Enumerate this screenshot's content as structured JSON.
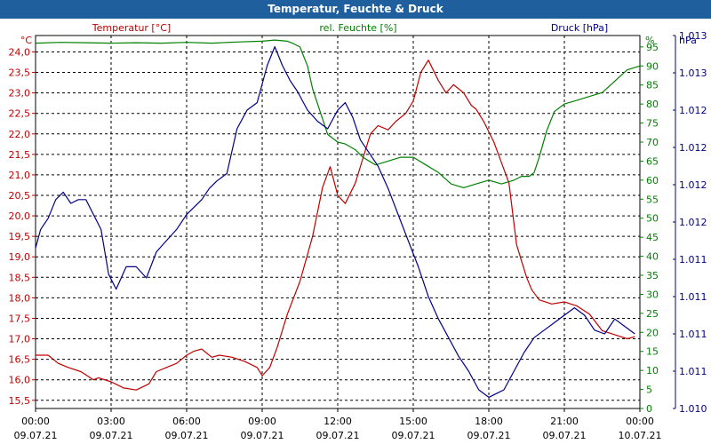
{
  "window": {
    "title": "Temperatur, Feuchte & Druck"
  },
  "colors": {
    "temperature": "#c00000",
    "humidity": "#008000",
    "pressure": "#00008b",
    "grid": "#000000",
    "titlebar": "#1f5f9e"
  },
  "chart_data": {
    "type": "line",
    "title": "Temperatur, Feuchte & Druck",
    "x_ticks": [
      {
        "time": "00:00",
        "date": "09.07.21",
        "hour": 0
      },
      {
        "time": "03:00",
        "date": "09.07.21",
        "hour": 3
      },
      {
        "time": "06:00",
        "date": "09.07.21",
        "hour": 6
      },
      {
        "time": "09:00",
        "date": "09.07.21",
        "hour": 9
      },
      {
        "time": "12:00",
        "date": "09.07.21",
        "hour": 12
      },
      {
        "time": "15:00",
        "date": "09.07.21",
        "hour": 15
      },
      {
        "time": "18:00",
        "date": "09.07.21",
        "hour": 18
      },
      {
        "time": "21:00",
        "date": "09.07.21",
        "hour": 21
      },
      {
        "time": "00:00",
        "date": "10.07.21",
        "hour": 24
      }
    ],
    "xlim": [
      0,
      24
    ],
    "axes": {
      "temperature": {
        "legend": "Temperatur [°C]",
        "unit": "°C",
        "ylim": [
          15.3,
          24.4
        ],
        "tick_labels": [
          "24,0",
          "23,5",
          "23,0",
          "22,5",
          "22,0",
          "21,5",
          "21,0",
          "20,5",
          "20,0",
          "19,5",
          "19,0",
          "18,5",
          "18,0",
          "17,5",
          "17,0",
          "16,5",
          "16,0",
          "15,5"
        ],
        "tick_values": [
          24.0,
          23.5,
          23.0,
          22.5,
          22.0,
          21.5,
          21.0,
          20.5,
          20.0,
          19.5,
          19.0,
          18.5,
          18.0,
          17.5,
          17.0,
          16.5,
          16.0,
          15.5
        ]
      },
      "humidity": {
        "legend": "rel. Feuchte [%]",
        "unit": "%",
        "ylim": [
          0,
          98
        ],
        "tick_labels": [
          "95",
          "90",
          "85",
          "80",
          "75",
          "70",
          "65",
          "60",
          "55",
          "50",
          "45",
          "40",
          "35",
          "30",
          "25",
          "20",
          "15",
          "10",
          "5",
          "0"
        ],
        "tick_values": [
          95,
          90,
          85,
          80,
          75,
          70,
          65,
          60,
          55,
          50,
          45,
          40,
          35,
          30,
          25,
          20,
          15,
          10,
          5,
          0
        ]
      },
      "pressure": {
        "legend": "Druck [hPa]",
        "unit": "hPa",
        "tick_labels": [
          "1.013",
          "1.013",
          "1.012",
          "1.012",
          "1.012",
          "1.012",
          "1.011",
          "1.011",
          "1.011",
          "1.011",
          "1.010"
        ],
        "tick_fractions": [
          0.0,
          0.1,
          0.2,
          0.3,
          0.4,
          0.5,
          0.6,
          0.7,
          0.8,
          0.9,
          1.0
        ]
      }
    },
    "series": [
      {
        "name": "Temperatur [°C]",
        "axis": "temperature",
        "x": [
          0,
          0.5,
          0.9,
          1.3,
          1.8,
          2.3,
          2.5,
          3.0,
          3.5,
          4.0,
          4.5,
          4.8,
          5.2,
          5.6,
          6.0,
          6.3,
          6.6,
          7.0,
          7.3,
          7.8,
          8.3,
          8.8,
          9.0,
          9.3,
          9.6,
          10.0,
          10.5,
          11.0,
          11.4,
          11.7,
          12.0,
          12.3,
          12.7,
          13.0,
          13.3,
          13.6,
          14.0,
          14.3,
          14.7,
          15.0,
          15.3,
          15.6,
          16.0,
          16.3,
          16.6,
          17.0,
          17.3,
          17.5,
          17.8,
          18.2,
          18.5,
          18.8,
          19.1,
          19.3,
          19.5,
          19.7,
          20.0,
          20.5,
          21.0,
          21.5,
          22.0,
          22.5,
          23.0,
          23.5,
          23.8
        ],
        "values": [
          16.6,
          16.6,
          16.4,
          16.3,
          16.2,
          16.0,
          16.05,
          15.95,
          15.8,
          15.75,
          15.9,
          16.2,
          16.3,
          16.4,
          16.6,
          16.7,
          16.75,
          16.55,
          16.6,
          16.55,
          16.45,
          16.3,
          16.1,
          16.3,
          16.8,
          17.6,
          18.4,
          19.5,
          20.7,
          21.2,
          20.5,
          20.3,
          20.8,
          21.4,
          22.0,
          22.2,
          22.1,
          22.3,
          22.5,
          22.8,
          23.5,
          23.8,
          23.3,
          23.0,
          23.2,
          23.0,
          22.7,
          22.6,
          22.3,
          21.8,
          21.3,
          20.8,
          19.3,
          18.9,
          18.5,
          18.2,
          17.95,
          17.85,
          17.9,
          17.8,
          17.6,
          17.2,
          17.1,
          17.0,
          17.05
        ]
      },
      {
        "name": "rel. Feuchte [%]",
        "axis": "humidity",
        "x": [
          0,
          1,
          2,
          3,
          4,
          5,
          6,
          7,
          8,
          9,
          9.5,
          10,
          10.2,
          10.5,
          10.8,
          11.0,
          11.3,
          11.6,
          12.0,
          12.3,
          12.7,
          13.0,
          13.5,
          14.0,
          14.5,
          15.0,
          15.5,
          16.0,
          16.5,
          17.0,
          17.5,
          18.0,
          18.5,
          19.0,
          19.3,
          19.6,
          19.8,
          20.0,
          20.3,
          20.6,
          21.0,
          21.5,
          22.0,
          22.5,
          23.0,
          23.5,
          24
        ],
        "values": [
          96,
          96.2,
          96.1,
          96,
          96.1,
          96,
          96.2,
          96,
          96.3,
          96.5,
          96.8,
          96.5,
          96,
          95,
          90,
          84,
          78,
          72,
          70,
          69.5,
          68,
          66,
          64,
          65,
          66,
          66,
          64,
          62,
          59,
          58,
          59,
          60,
          59,
          60,
          61,
          61,
          62,
          66,
          73,
          78,
          80,
          81,
          82,
          83,
          86,
          89,
          90
        ]
      },
      {
        "name": "Druck [hPa]",
        "axis": "pressure",
        "x": [
          0,
          0.2,
          0.5,
          0.8,
          1.1,
          1.4,
          1.7,
          2.0,
          2.3,
          2.6,
          2.9,
          3.2,
          3.6,
          4.0,
          4.4,
          4.8,
          5.2,
          5.6,
          6.0,
          6.3,
          6.6,
          6.9,
          7.2,
          7.6,
          8.0,
          8.4,
          8.8,
          9.2,
          9.5,
          9.8,
          10.1,
          10.4,
          10.8,
          11.2,
          11.6,
          12.0,
          12.3,
          12.6,
          12.9,
          13.2,
          13.6,
          14.0,
          14.4,
          14.8,
          15.2,
          15.6,
          16.0,
          16.4,
          16.8,
          17.2,
          17.6,
          18.0,
          18.3,
          18.6,
          19.0,
          19.4,
          19.8,
          20.2,
          20.6,
          21.0,
          21.4,
          21.8,
          22.2,
          22.6,
          23.0,
          23.4,
          23.8
        ],
        "values": [
          0.57,
          0.52,
          0.49,
          0.44,
          0.42,
          0.45,
          0.44,
          0.44,
          0.48,
          0.52,
          0.64,
          0.68,
          0.62,
          0.62,
          0.65,
          0.58,
          0.55,
          0.52,
          0.48,
          0.46,
          0.44,
          0.41,
          0.39,
          0.37,
          0.25,
          0.2,
          0.18,
          0.08,
          0.03,
          0.08,
          0.12,
          0.15,
          0.2,
          0.23,
          0.25,
          0.2,
          0.18,
          0.22,
          0.28,
          0.31,
          0.35,
          0.41,
          0.48,
          0.55,
          0.62,
          0.7,
          0.76,
          0.81,
          0.86,
          0.9,
          0.95,
          0.97,
          0.96,
          0.95,
          0.9,
          0.85,
          0.81,
          0.79,
          0.77,
          0.75,
          0.73,
          0.75,
          0.79,
          0.8,
          0.76,
          0.78,
          0.8
        ]
      }
    ]
  }
}
